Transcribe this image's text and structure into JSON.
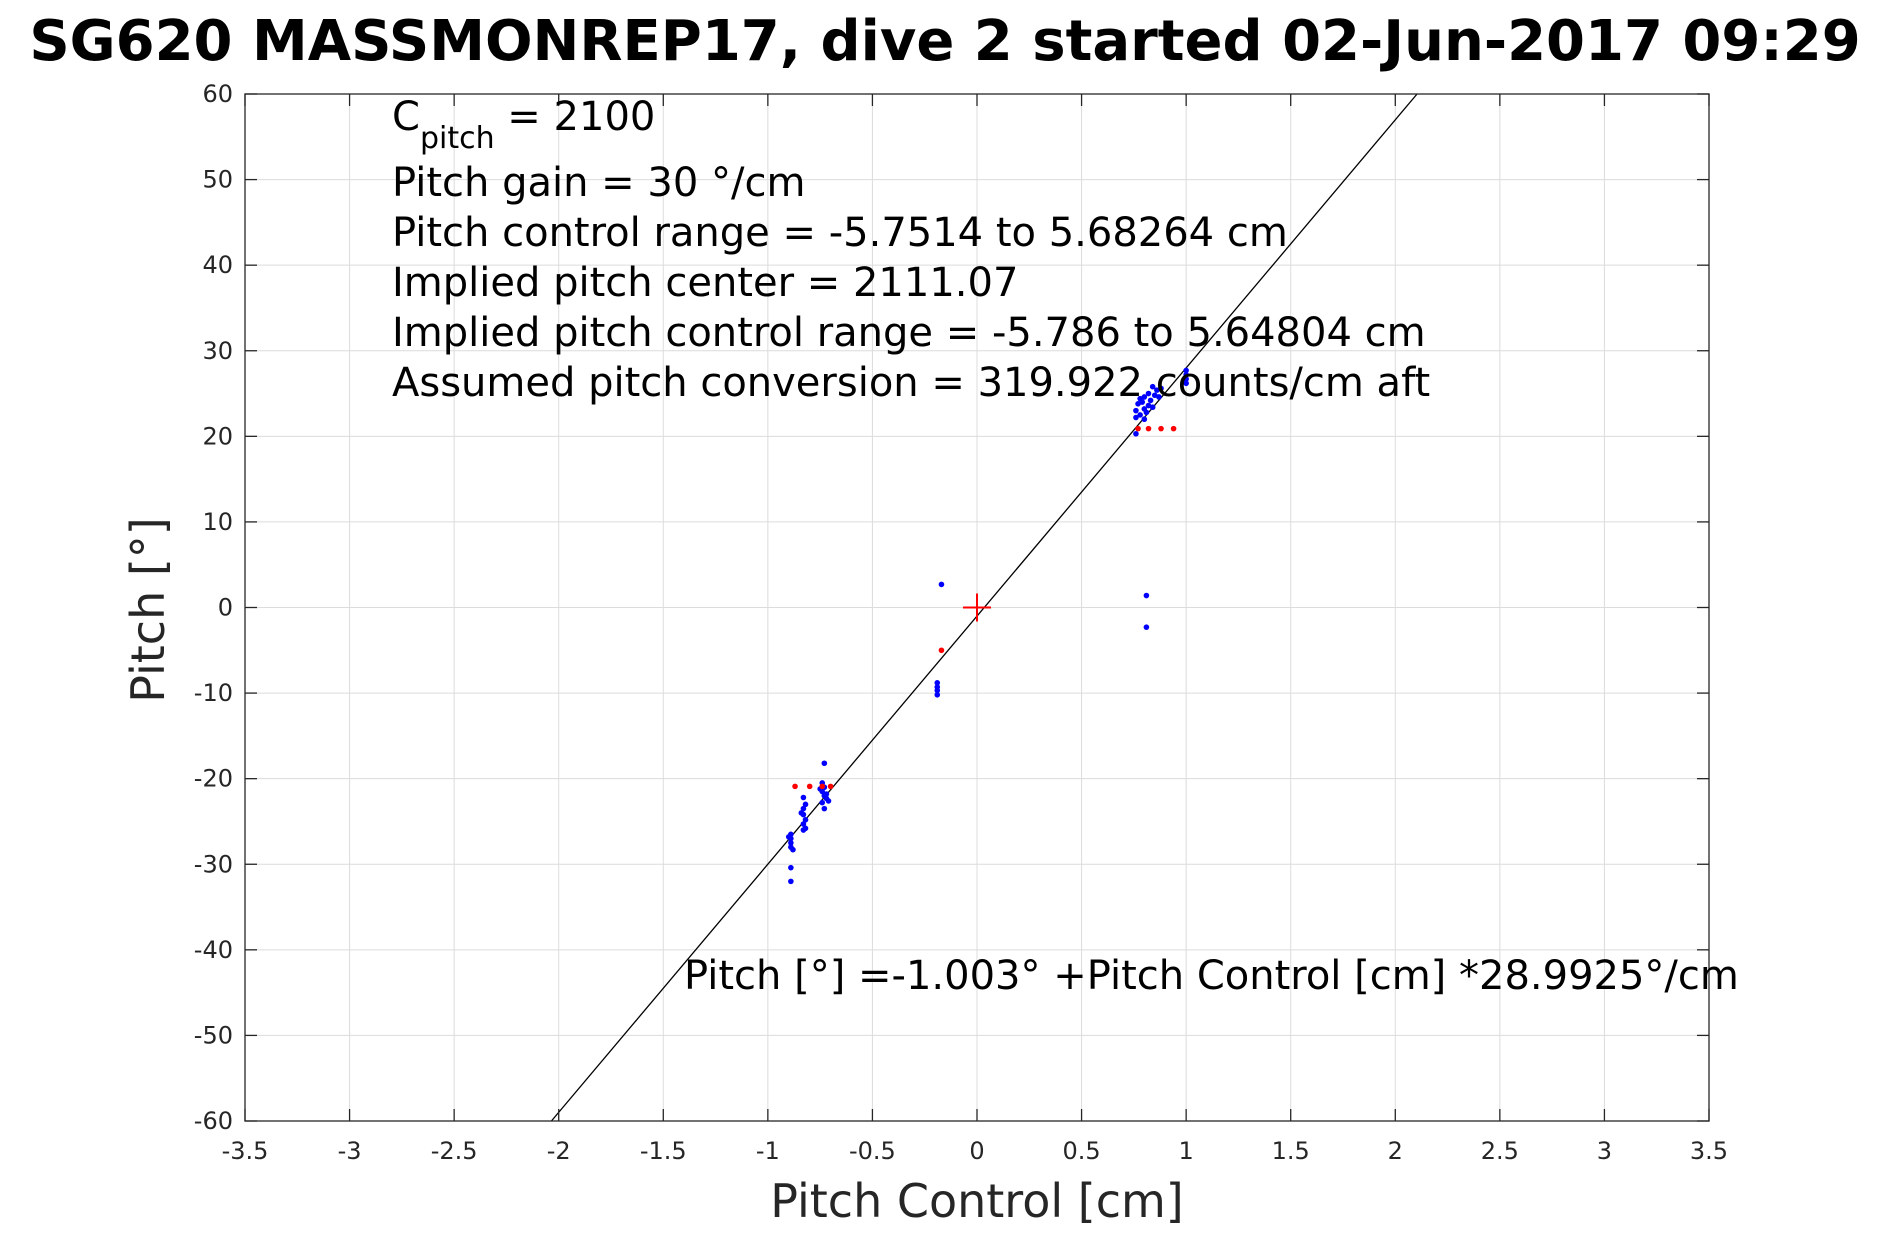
{
  "chart_data": {
    "type": "scatter",
    "title": "SG620 MASSMONREP17, dive 2 started 02-Jun-2017 09:29",
    "xlabel": "Pitch Control [cm]",
    "ylabel": "Pitch [°]",
    "xlim": [
      -3.5,
      3.5
    ],
    "ylim": [
      -60,
      60
    ],
    "xticks": [
      -3.5,
      -3,
      -2.5,
      -2,
      -1.5,
      -1,
      -0.5,
      0,
      0.5,
      1,
      1.5,
      2,
      2.5,
      3,
      3.5
    ],
    "yticks": [
      -60,
      -50,
      -40,
      -30,
      -20,
      -10,
      0,
      10,
      20,
      30,
      40,
      50,
      60
    ],
    "xtick_labels": [
      "-3.5",
      "-3",
      "-2.5",
      "-2",
      "-1.5",
      "-1",
      "-0.5",
      "0",
      "0.5",
      "1",
      "1.5",
      "2",
      "2.5",
      "3",
      "3.5"
    ],
    "ytick_labels": [
      "-60",
      "-50",
      "-40",
      "-30",
      "-20",
      "-10",
      "0",
      "10",
      "20",
      "30",
      "40",
      "50",
      "60"
    ],
    "grid": true,
    "colors": {
      "observed": "#0000ff",
      "expected": "#ff0000",
      "fit": "#000000",
      "center": "#ff0000"
    },
    "fit_line": {
      "intercept": -1.003,
      "slope": 28.9925
    },
    "center_marker": {
      "x": 0,
      "y": 0
    },
    "annotation_block": {
      "line1_prefix": "C",
      "line1_sub": "pitch",
      "line1_suffix": " = 2100",
      "lines": [
        "Pitch gain = 30 °/cm",
        "Pitch control range = -5.7514 to 5.68264 cm",
        "Implied pitch center = 2111.07",
        "Implied pitch control range = -5.786 to 5.64804 cm",
        "Assumed pitch conversion = 319.922 counts/cm aft"
      ]
    },
    "fit_equation": "Pitch [°] =-1.003° +Pitch Control [cm] *28.9925°/cm",
    "series": [
      {
        "color": "#0000ff",
        "points": [
          [
            -0.89,
            -26.5
          ],
          [
            -0.89,
            -27.0
          ],
          [
            -0.89,
            -27.5
          ],
          [
            -0.89,
            -28.0
          ],
          [
            -0.88,
            -28.3
          ],
          [
            -0.9,
            -26.8
          ],
          [
            -0.89,
            -30.4
          ],
          [
            -0.89,
            -32.0
          ],
          [
            -0.83,
            -22.2
          ],
          [
            -0.83,
            -23.5
          ],
          [
            -0.83,
            -24.2
          ],
          [
            -0.82,
            -24.8
          ],
          [
            -0.83,
            -25.3
          ],
          [
            -0.82,
            -25.8
          ],
          [
            -0.83,
            -26.0
          ],
          [
            -0.84,
            -24.0
          ],
          [
            -0.82,
            -23.0
          ],
          [
            -0.73,
            -18.2
          ],
          [
            -0.74,
            -20.5
          ],
          [
            -0.73,
            -21.0
          ],
          [
            -0.74,
            -21.5
          ],
          [
            -0.73,
            -22.0
          ],
          [
            -0.72,
            -22.3
          ],
          [
            -0.74,
            -22.8
          ],
          [
            -0.73,
            -23.5
          ],
          [
            -0.72,
            -21.8
          ],
          [
            -0.75,
            -21.2
          ],
          [
            -0.71,
            -22.6
          ],
          [
            -0.17,
            2.7
          ],
          [
            -0.19,
            -8.8
          ],
          [
            -0.19,
            -9.3
          ],
          [
            -0.19,
            -9.7
          ],
          [
            -0.19,
            -10.2
          ],
          [
            0.81,
            1.4
          ],
          [
            0.81,
            -2.3
          ],
          [
            0.76,
            20.3
          ],
          [
            0.76,
            22.2
          ],
          [
            0.76,
            23.0
          ],
          [
            0.77,
            23.8
          ],
          [
            0.78,
            22.5
          ],
          [
            0.79,
            24.0
          ],
          [
            0.8,
            23.2
          ],
          [
            0.8,
            24.6
          ],
          [
            0.81,
            22.8
          ],
          [
            0.82,
            23.6
          ],
          [
            0.82,
            25.0
          ],
          [
            0.83,
            24.2
          ],
          [
            0.84,
            23.4
          ],
          [
            0.85,
            24.8
          ],
          [
            0.86,
            25.4
          ],
          [
            0.87,
            24.6
          ],
          [
            0.88,
            25.6
          ],
          [
            0.78,
            24.4
          ],
          [
            0.8,
            22.0
          ],
          [
            0.84,
            25.8
          ],
          [
            1.0,
            26.2
          ],
          [
            1.0,
            26.7
          ],
          [
            1.0,
            27.2
          ],
          [
            1.0,
            27.7
          ]
        ]
      },
      {
        "color": "#ff0000",
        "points": [
          [
            -0.87,
            -20.9
          ],
          [
            -0.8,
            -20.9
          ],
          [
            -0.74,
            -20.9
          ],
          [
            -0.7,
            -20.9
          ],
          [
            -0.17,
            -5.0
          ],
          [
            0.77,
            20.9
          ],
          [
            0.82,
            20.9
          ],
          [
            0.88,
            20.9
          ],
          [
            0.94,
            20.9
          ]
        ]
      }
    ]
  }
}
